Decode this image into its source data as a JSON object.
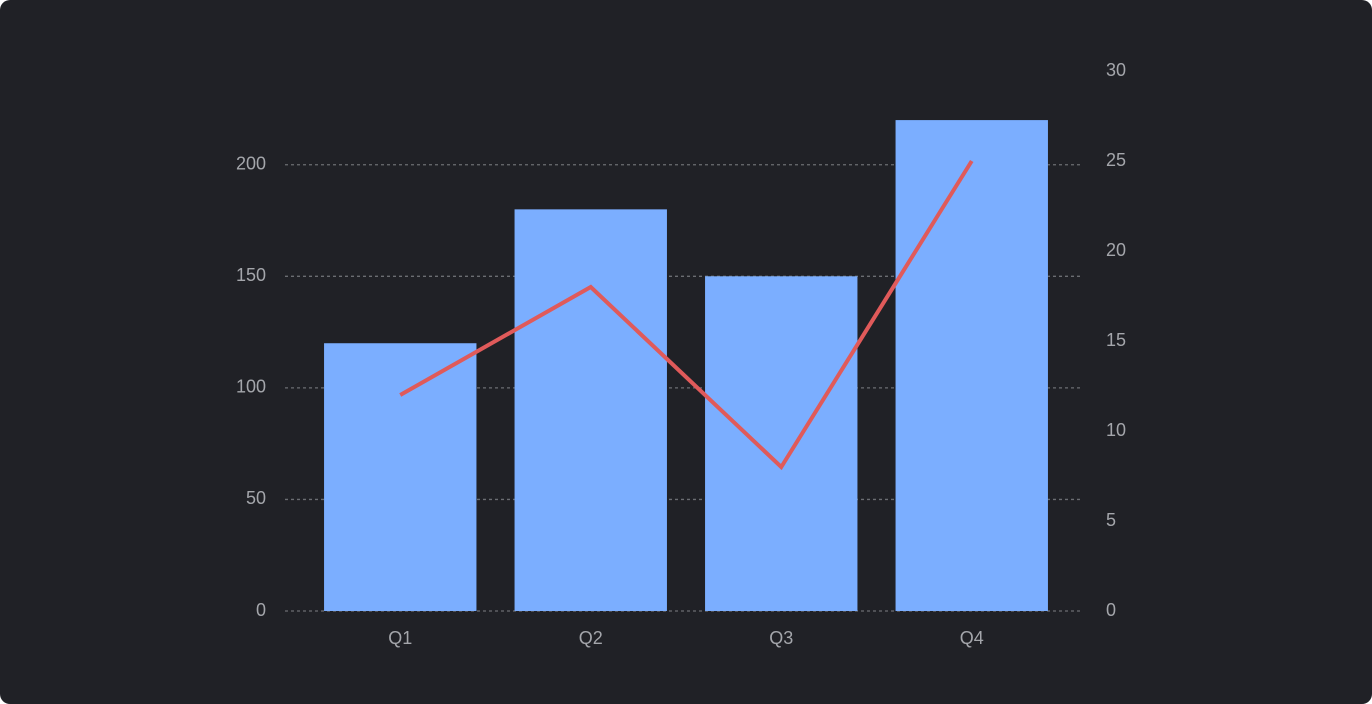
{
  "chart_data": {
    "type": "bar-line",
    "categories": [
      "Q1",
      "Q2",
      "Q3",
      "Q4"
    ],
    "series": [
      {
        "type": "bar",
        "color": "#7baeff",
        "values": [
          120,
          180,
          150,
          220
        ]
      },
      {
        "type": "line",
        "color": "#e05a5a",
        "axis": "y2",
        "values": [
          12,
          18,
          8,
          25
        ]
      }
    ],
    "ylim": [
      0,
      242
    ],
    "yticks": [
      0,
      50,
      100,
      150,
      200
    ],
    "y2lim": [
      0,
      30
    ],
    "y2ticks": [
      0,
      5,
      10,
      15,
      20,
      25,
      30
    ],
    "grid": true
  }
}
